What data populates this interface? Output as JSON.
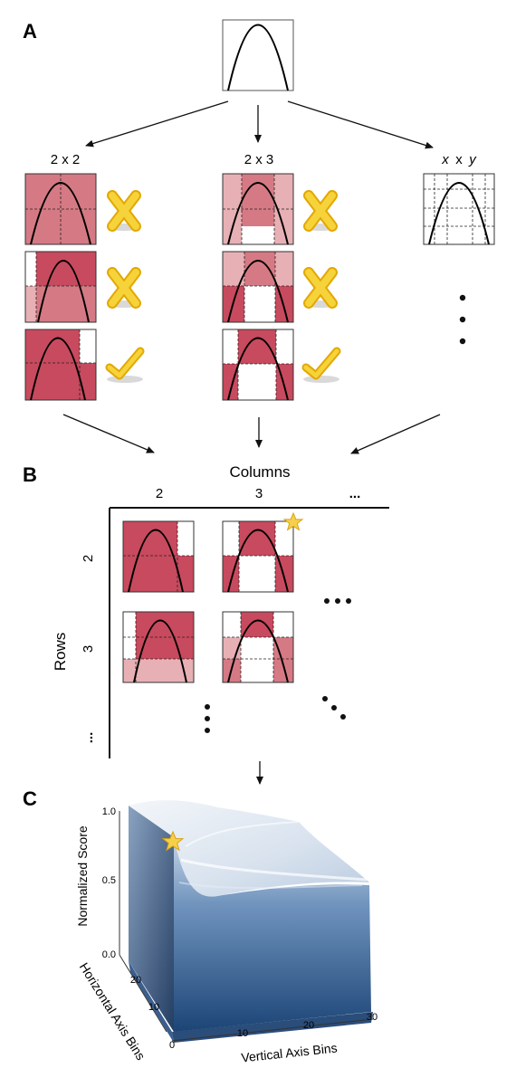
{
  "panels": {
    "a": "A",
    "b": "B",
    "c": "C"
  },
  "panel_a": {
    "grid_labels": [
      "2 x 2",
      "2 x 3"
    ],
    "grid_label_xy": {
      "x": "x",
      "sep": "x",
      "y": "y"
    }
  },
  "panel_b": {
    "columns_title": "Columns",
    "rows_title": "Rows",
    "col_ticks": [
      "2",
      "3",
      "..."
    ],
    "row_ticks": [
      "2",
      "3",
      "..."
    ]
  },
  "chart_data": {
    "type": "surface",
    "xlabel": "Vertical Axis Bins",
    "ylabel": "Horizontal Axis Bins",
    "zlabel": "Normalized Score",
    "x_ticks": [
      "10",
      "20",
      "30"
    ],
    "y_ticks": [
      "0",
      "10",
      "20"
    ],
    "z_ticks": [
      "0.0",
      "0.5",
      "1.0"
    ],
    "xlim": [
      0,
      30
    ],
    "ylim": [
      0,
      25
    ],
    "zlim": [
      0,
      1
    ],
    "colors": {
      "surface_top": "#dfe7f1",
      "surface_bottom": "#1c4576",
      "star": "#f3c23a"
    }
  },
  "colors": {
    "cell_dark": "#c84a5e",
    "cell_mid": "#d57a84",
    "cell_light": "#e7b0b5",
    "cross": "#f2c319",
    "check": "#f2c319"
  }
}
